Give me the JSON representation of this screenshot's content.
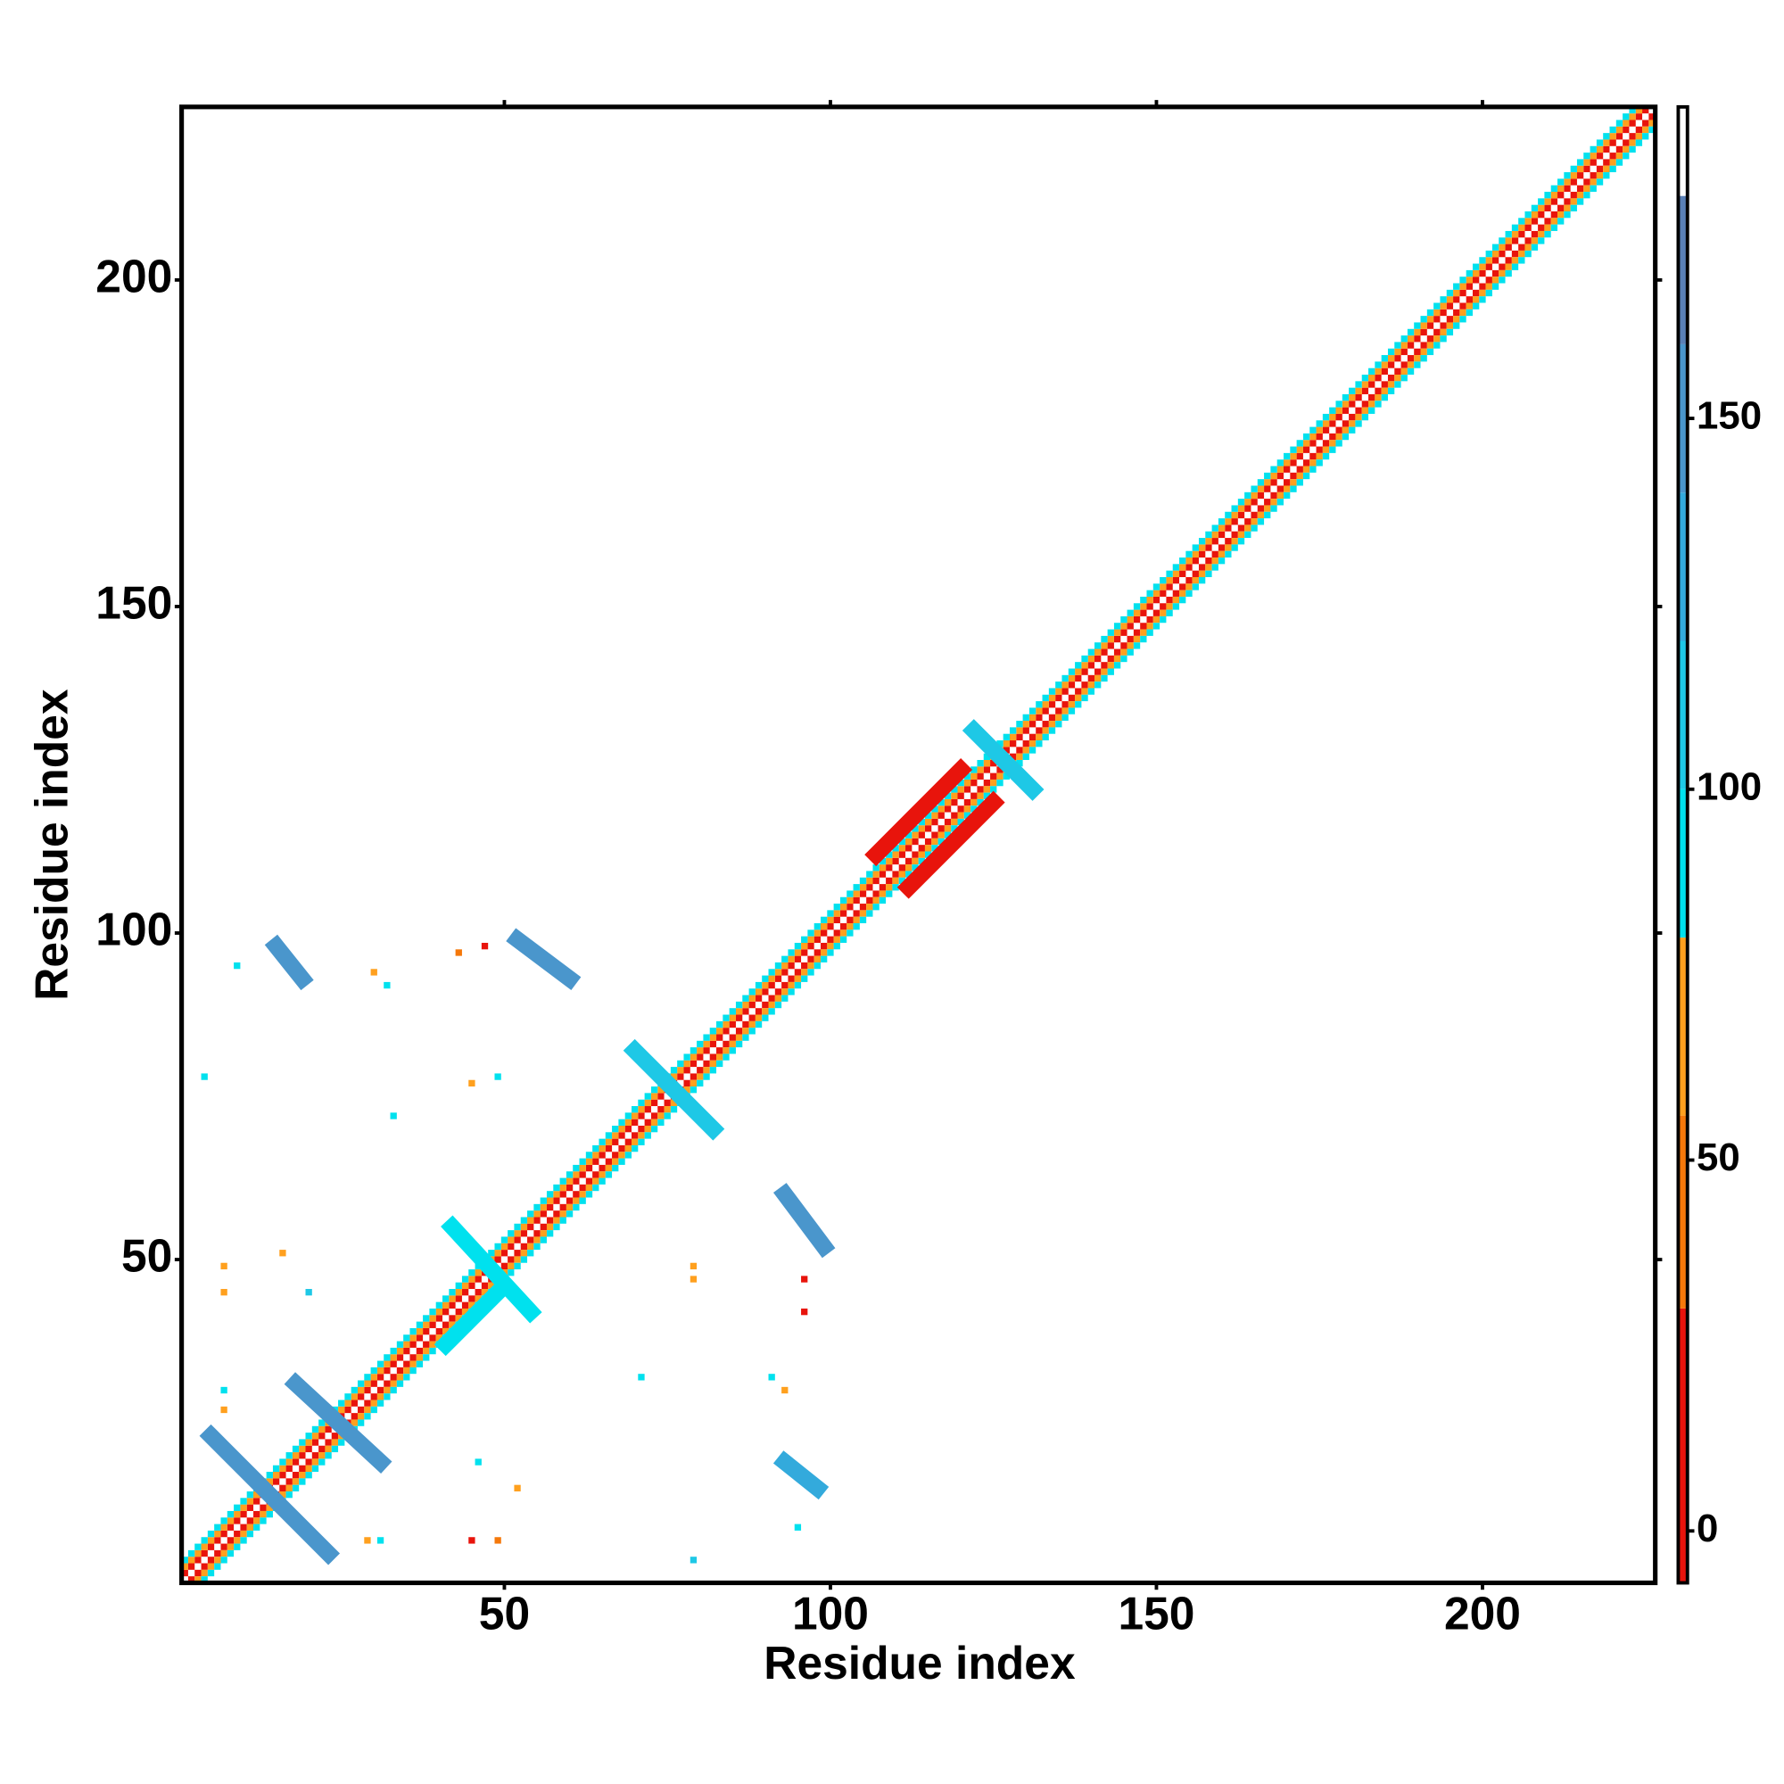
{
  "chart_data": {
    "type": "heatmap",
    "x_label": "Residue index",
    "y_label": "Residue index",
    "xlim": [
      0.5,
      226.5
    ],
    "ylim": [
      0.5,
      226.5
    ],
    "xticks": [
      50,
      100,
      150,
      200
    ],
    "yticks": [
      50,
      100,
      150,
      200
    ],
    "colorbar": {
      "lim": [
        -7,
        192
      ],
      "ticks": [
        0,
        50,
        100,
        150
      ],
      "scale": [
        {
          "from": -7,
          "to": 30,
          "color": "#e8140c"
        },
        {
          "from": 30,
          "to": 56,
          "color": "#f5780a"
        },
        {
          "from": 56,
          "to": 80,
          "color": "#ffa01e"
        },
        {
          "from": 80,
          "to": 100,
          "color": "#00e1ee"
        },
        {
          "from": 100,
          "to": 120,
          "color": "#1ec8e6"
        },
        {
          "from": 120,
          "to": 140,
          "color": "#33aadc"
        },
        {
          "from": 140,
          "to": 160,
          "color": "#4a96cc"
        },
        {
          "from": 160,
          "to": 180,
          "color": "#5a80b6"
        },
        {
          "from": 180,
          "to": 192,
          "color": "#ffffff"
        }
      ]
    },
    "diagonal": {
      "start": 1,
      "end": 226,
      "offsets": [
        0,
        1,
        2,
        3
      ],
      "values": [
        185,
        20,
        60,
        95
      ]
    },
    "streaks": [
      {
        "x": [
          5,
          23
        ],
        "y": [
          23,
          5
        ],
        "value": 150
      },
      {
        "x": [
          18,
          31
        ],
        "y": [
          31,
          19
        ],
        "value": 150
      },
      {
        "x": [
          15,
          19
        ],
        "y": [
          98,
          93
        ],
        "value": 150
      },
      {
        "x": [
          52,
          60
        ],
        "y": [
          99,
          93
        ],
        "value": 145
      },
      {
        "x": [
          93,
          99
        ],
        "y": [
          60,
          52
        ],
        "value": 150
      },
      {
        "x": [
          93,
          98
        ],
        "y": [
          19,
          15
        ],
        "value": 140
      },
      {
        "x": [
          42,
          54
        ],
        "y": [
          55,
          42
        ],
        "value": 95
      },
      {
        "x": [
          70,
          82
        ],
        "y": [
          82,
          70
        ],
        "value": 110
      },
      {
        "x": [
          122,
          131
        ],
        "y": [
          131,
          122
        ],
        "value": 110
      },
      {
        "x": [
          112,
          125
        ],
        "y": [
          107,
          120
        ],
        "value": 30
      },
      {
        "x": [
          107,
          120
        ],
        "y": [
          112,
          125
        ],
        "value": 30
      },
      {
        "x": [
          41,
          50
        ],
        "y": [
          37,
          46
        ],
        "value": 95
      }
    ],
    "cells": {
      "x": [
        9,
        4,
        33,
        32,
        30,
        47,
        43,
        45,
        49,
        7,
        7,
        16,
        20,
        7,
        7,
        71,
        79,
        79,
        91,
        93,
        96,
        96,
        46,
        52,
        29,
        31,
        45,
        49,
        95,
        79
      ],
      "y": [
        95,
        78,
        72,
        92,
        94,
        98,
        97,
        77,
        78,
        49,
        45,
        51,
        45,
        27,
        30,
        32,
        47,
        49,
        32,
        30,
        47,
        42,
        19,
        15,
        7,
        7,
        7,
        7,
        9,
        4
      ],
      "values": [
        90,
        95,
        95,
        95,
        60,
        20,
        45,
        60,
        90,
        60,
        60,
        70,
        110,
        60,
        95,
        95,
        60,
        60,
        95,
        60,
        20,
        20,
        95,
        60,
        60,
        90,
        20,
        40,
        95,
        110
      ]
    }
  }
}
